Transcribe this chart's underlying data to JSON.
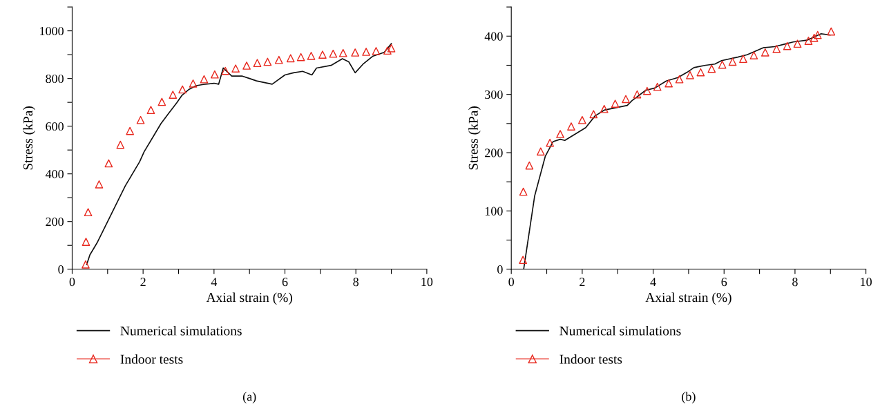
{
  "chart_data": [
    {
      "type": "line",
      "xlabel": "Axial strain (%)",
      "ylabel": "Stress (kPa)",
      "annotations": [
        "(a)"
      ],
      "xlim": [
        0,
        10
      ],
      "ylim": [
        0,
        1100
      ],
      "xticks": [
        0,
        {
          "value": 1,
          "label": null
        },
        2,
        {
          "value": 3,
          "label": null
        },
        4,
        {
          "value": 5,
          "label": null
        },
        6,
        {
          "value": 7,
          "label": null
        },
        8,
        {
          "value": 9,
          "label": null
        },
        10
      ],
      "yticks": [
        0,
        {
          "value": 100,
          "label": null
        },
        200,
        {
          "value": 300,
          "label": null
        },
        400,
        {
          "value": 500,
          "label": null
        },
        600,
        {
          "value": 700,
          "label": null
        },
        800,
        {
          "value": 900,
          "label": null
        },
        1000,
        {
          "value": 1100,
          "label": null
        }
      ],
      "legend": "bottom",
      "grid": false,
      "series": [
        {
          "name": "Numerical simulations",
          "type": "line",
          "color": "#111111",
          "marker": "none",
          "line_style": "solid",
          "x": [
            0.41,
            0.5,
            0.7,
            0.9,
            1.1,
            1.3,
            1.5,
            1.7,
            1.9,
            2.03,
            2.3,
            2.5,
            2.7,
            2.95,
            3.1,
            3.3,
            3.5,
            3.7,
            4.0,
            4.13,
            4.26,
            4.5,
            4.8,
            5.0,
            5.2,
            5.64,
            6.0,
            6.24,
            6.5,
            6.76,
            6.89,
            7.3,
            7.62,
            7.8,
            7.98,
            8.2,
            8.47,
            8.8,
            9.0
          ],
          "values": [
            20,
            60,
            110,
            170,
            230,
            290,
            350,
            400,
            450,
            493,
            560,
            610,
            650,
            698,
            730,
            755,
            770,
            775,
            780,
            776,
            844,
            810,
            810,
            800,
            790,
            776,
            815,
            824,
            830,
            815,
            844,
            855,
            883,
            870,
            824,
            860,
            893,
            910,
            946
          ]
        },
        {
          "name": "Indoor tests",
          "type": "scatter",
          "color": "#e8281e",
          "marker": "triangle",
          "x": [
            0.38,
            0.39,
            0.45,
            0.76,
            1.03,
            1.36,
            1.63,
            1.93,
            2.22,
            2.53,
            2.84,
            3.11,
            3.41,
            3.72,
            4.02,
            4.32,
            4.61,
            4.92,
            5.22,
            5.51,
            5.83,
            6.16,
            6.45,
            6.74,
            7.06,
            7.36,
            7.64,
            7.98,
            8.29,
            8.57,
            8.89,
            9.0
          ],
          "values": [
            20,
            115,
            239,
            356,
            444,
            522,
            580,
            626,
            668,
            702,
            732,
            754,
            779,
            797,
            817,
            832,
            842,
            854,
            865,
            870,
            878,
            885,
            890,
            895,
            900,
            904,
            907,
            909,
            912,
            915,
            917,
            927
          ]
        }
      ]
    },
    {
      "type": "line",
      "xlabel": "Axial strain (%)",
      "ylabel": "Stress (kPa)",
      "annotations": [
        "(b)"
      ],
      "xlim": [
        0,
        10
      ],
      "ylim": [
        0,
        450
      ],
      "xticks": [
        0,
        {
          "value": 1,
          "label": null
        },
        2,
        {
          "value": 3,
          "label": null
        },
        4,
        {
          "value": 5,
          "label": null
        },
        6,
        {
          "value": 7,
          "label": null
        },
        8,
        {
          "value": 9,
          "label": null
        },
        10
      ],
      "yticks": [
        0,
        {
          "value": 50,
          "label": null
        },
        100,
        {
          "value": 150,
          "label": null
        },
        200,
        {
          "value": 250,
          "label": null
        },
        300,
        {
          "value": 350,
          "label": null
        },
        400,
        {
          "value": 450,
          "label": null
        }
      ],
      "legend": "bottom",
      "grid": false,
      "series": [
        {
          "name": "Numerical simulations",
          "type": "line",
          "color": "#111111",
          "marker": "none",
          "line_style": "solid",
          "x": [
            0.35,
            0.66,
            0.96,
            1.18,
            1.38,
            1.51,
            1.83,
            2.1,
            2.36,
            2.62,
            3.27,
            3.4,
            3.79,
            4.05,
            4.37,
            4.7,
            4.96,
            5.15,
            5.48,
            5.74,
            5.93,
            6.39,
            6.65,
            7.1,
            7.43,
            7.69,
            7.95,
            8.34,
            8.73,
            8.99
          ],
          "values": [
            0,
            126,
            194,
            219,
            223,
            221,
            233,
            243,
            263,
            273,
            281,
            289,
            307,
            311,
            323,
            329,
            338,
            346,
            350,
            352,
            358,
            364,
            368,
            380,
            382,
            386,
            390,
            393,
            404,
            402
          ]
        },
        {
          "name": "Indoor tests",
          "type": "scatter",
          "color": "#e8281e",
          "marker": "triangle",
          "x": [
            0.33,
            0.34,
            0.51,
            0.83,
            1.09,
            1.38,
            1.69,
            2.0,
            2.32,
            2.62,
            2.93,
            3.23,
            3.55,
            3.83,
            4.12,
            4.44,
            4.74,
            5.04,
            5.34,
            5.65,
            5.95,
            6.24,
            6.54,
            6.84,
            7.16,
            7.48,
            7.78,
            8.07,
            8.38,
            8.54,
            8.64,
            9.02
          ],
          "values": [
            16,
            133,
            178,
            202,
            217,
            232,
            245,
            256,
            266,
            275,
            284,
            292,
            300,
            306,
            313,
            319,
            326,
            333,
            338,
            344,
            351,
            356,
            361,
            367,
            372,
            378,
            383,
            387,
            392,
            397,
            402,
            408
          ]
        }
      ]
    }
  ]
}
